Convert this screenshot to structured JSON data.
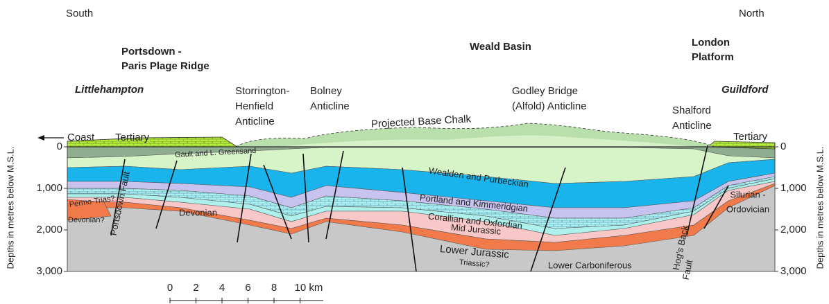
{
  "compass": {
    "left": "South",
    "right": "North"
  },
  "regions": [
    {
      "lines": [
        "Portsdown -",
        "Paris Plage Ridge"
      ]
    },
    {
      "lines": [
        "Weald Basin"
      ]
    },
    {
      "lines": [
        "London",
        "Platform"
      ]
    }
  ],
  "towns": [
    "Littlehampton",
    "Guildford"
  ],
  "structures": [
    {
      "lines": [
        "Storrington-",
        "Henfield",
        "Anticline"
      ]
    },
    {
      "lines": [
        "Bolney",
        "Anticline"
      ]
    },
    {
      "lines": [
        "Godley Bridge",
        "(Alfold) Anticline"
      ]
    },
    {
      "lines": [
        "Shalford",
        "Anticline"
      ]
    }
  ],
  "surface": {
    "coast": "Coast",
    "tertiary_left": "Tertiary",
    "chalk": "Projected Base Chalk",
    "tertiary_right": "Tertiary"
  },
  "units": {
    "gault": "Gault and L. Greensand",
    "wealden": "Wealden and Purbeckian",
    "portland": "Portland and Kimmeridgian",
    "corallian": "Corallian and Oxfordian",
    "mid_jurassic": "Mid Jurassic",
    "lower_jurassic": "Lower Jurassic",
    "triassic": "Triassic?",
    "permo_trias": "Permo-Trias?",
    "devonian_q": "Devonian?",
    "devonian": "Devonian",
    "carboniferous": "Lower Carboniferous",
    "silurian": {
      "lines": [
        "Silurian -",
        "Ordovician"
      ]
    }
  },
  "faults": {
    "portsdown": "Portsdown Fault",
    "hogs_back": {
      "lines": [
        "Hog's Back",
        "Fault"
      ]
    }
  },
  "axis": {
    "title": "Depths in metres below M.S.L.",
    "ticks": [
      "0",
      "1,000",
      "2,000",
      "3,000"
    ]
  },
  "scale": {
    "ticks": [
      "0",
      "2",
      "4",
      "6",
      "8",
      "10 km"
    ]
  }
}
